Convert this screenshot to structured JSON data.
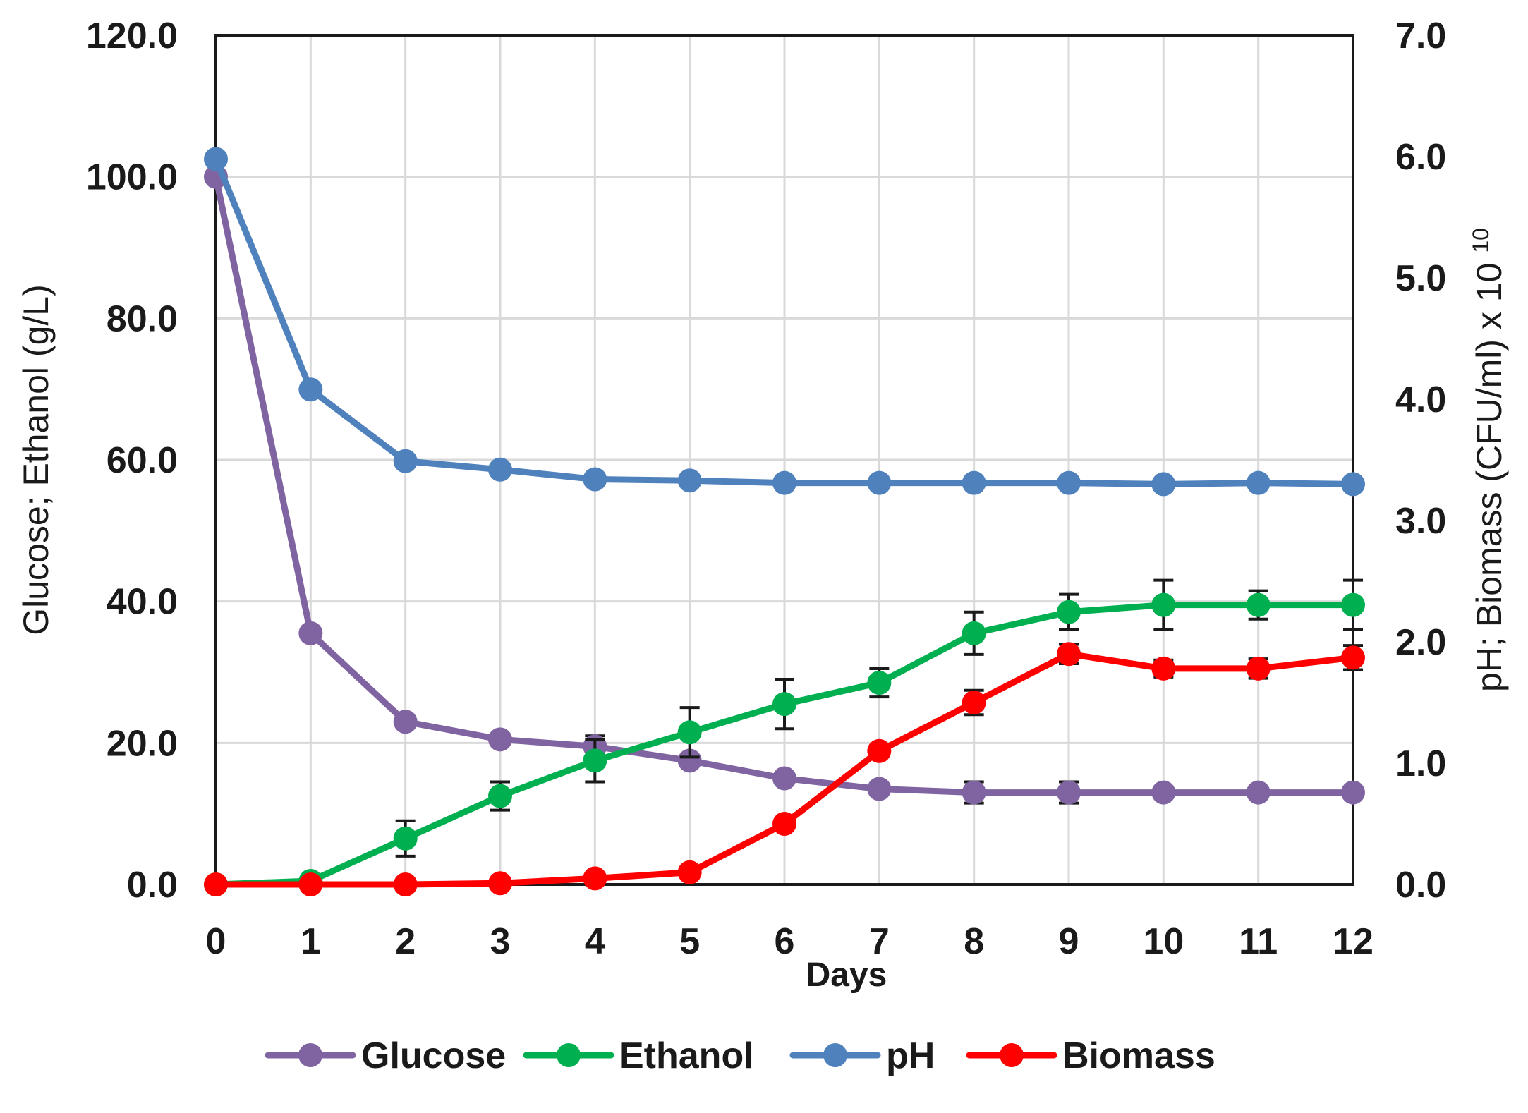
{
  "chart_data": {
    "type": "line",
    "title": "",
    "xlabel": "Days",
    "ylabel_left": "Glucose; Ethanol (g/L)",
    "ylabel_right": "pH; Biomass (CFU/ml) x 10",
    "ylabel_right_exponent": "10",
    "x": [
      0,
      1,
      2,
      3,
      4,
      5,
      6,
      7,
      8,
      9,
      10,
      11,
      12
    ],
    "x_tick_labels": [
      "0",
      "1",
      "2",
      "3",
      "4",
      "5",
      "6",
      "7",
      "8",
      "9",
      "10",
      "11",
      "12"
    ],
    "ylim_left": [
      0,
      120
    ],
    "ylim_right": [
      0,
      7
    ],
    "y_ticks_left": [
      "0.0",
      "20.0",
      "40.0",
      "60.0",
      "80.0",
      "100.0",
      "120.0"
    ],
    "y_ticks_right": [
      "0.0",
      "1.0",
      "2.0",
      "3.0",
      "4.0",
      "5.0",
      "6.0",
      "7.0"
    ],
    "grid": true,
    "legend_position": "bottom",
    "series": [
      {
        "name": "Glucose",
        "axis": "left",
        "color": "#8064A2",
        "values": [
          100.0,
          35.5,
          23.0,
          20.5,
          19.5,
          17.5,
          15.0,
          13.5,
          13.0,
          13.0,
          13.0,
          13.0,
          13.0
        ],
        "errors": [
          0,
          0,
          0,
          0,
          1.5,
          0,
          0,
          0,
          1.5,
          1.5,
          0,
          0,
          0
        ]
      },
      {
        "name": "Ethanol",
        "axis": "left",
        "color": "#00B050",
        "values": [
          0.0,
          0.5,
          6.5,
          12.5,
          17.5,
          21.5,
          25.5,
          28.5,
          35.5,
          38.5,
          39.5,
          39.5,
          39.5
        ],
        "errors": [
          0,
          0,
          2.5,
          2.0,
          3.0,
          3.5,
          3.5,
          2.0,
          3.0,
          2.5,
          3.5,
          2.0,
          3.5
        ]
      },
      {
        "name": "pH",
        "axis": "right",
        "color": "#4F81BD",
        "values": [
          5.98,
          4.08,
          3.49,
          3.42,
          3.34,
          3.33,
          3.31,
          3.31,
          3.31,
          3.31,
          3.3,
          3.31,
          3.3
        ],
        "errors": [
          0,
          0,
          0,
          0,
          0,
          0,
          0,
          0,
          0,
          0,
          0,
          0,
          0
        ]
      },
      {
        "name": "Biomass",
        "axis": "right",
        "color": "#FF0000",
        "values": [
          0.0,
          0.0,
          0.0,
          0.01,
          0.05,
          0.1,
          0.5,
          1.1,
          1.5,
          1.9,
          1.78,
          1.78,
          1.87
        ],
        "errors": [
          0,
          0,
          0,
          0,
          0,
          0,
          0,
          0,
          0.1,
          0.08,
          0.07,
          0.08,
          0.1
        ]
      }
    ]
  }
}
